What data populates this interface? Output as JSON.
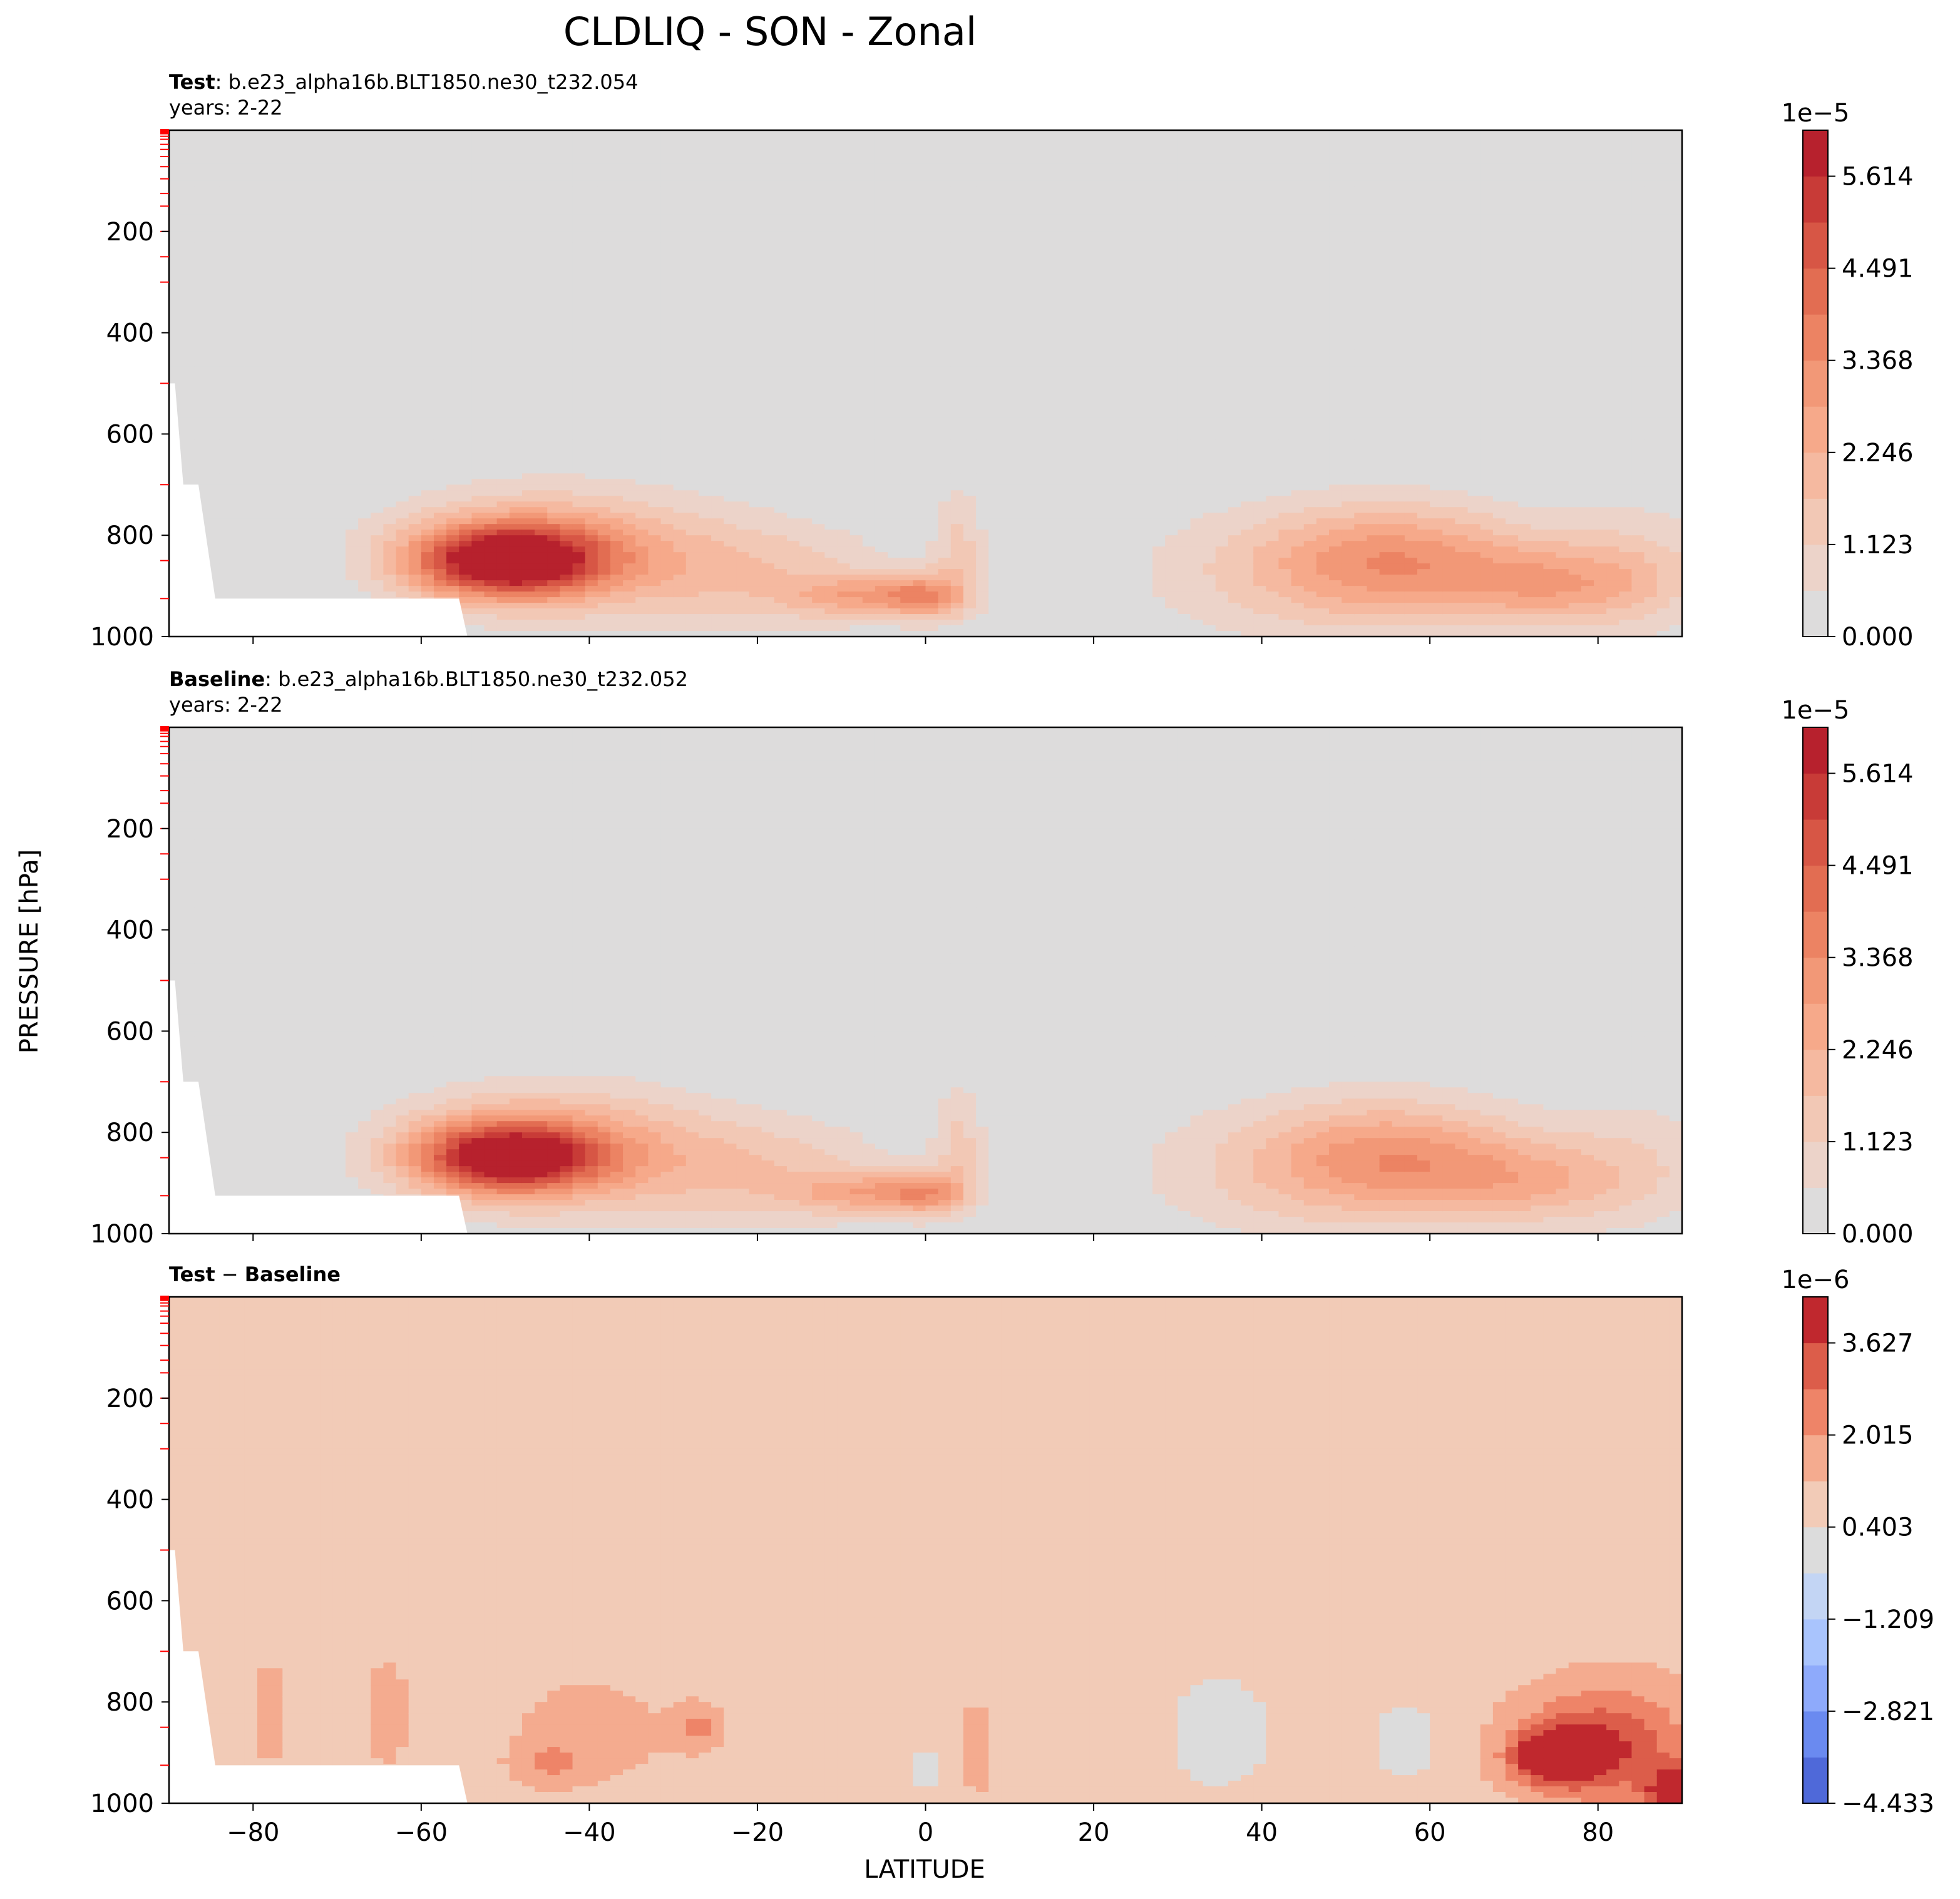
{
  "figure": {
    "title": "CLDLIQ - SON - Zonal",
    "xlabel": "LATITUDE",
    "ylabel": "PRESSURE [hPa]"
  },
  "chart_data": [
    {
      "type": "heatmap",
      "panel": "test",
      "label_bold": "Test",
      "label_text": ": b.e23_alpha16b.BLT1850.ne30_t232.054",
      "years": "years: 2-22",
      "xlim": [
        -90,
        90
      ],
      "ylim": [
        1000,
        0
      ],
      "x_ticks": [
        -80,
        -60,
        -40,
        -20,
        0,
        20,
        40,
        60,
        80
      ],
      "y_ticks": [
        200,
        400,
        600,
        800,
        1000
      ],
      "colorbar": {
        "exponent": "1e−5",
        "ticks": [
          "0.000",
          "1.123",
          "2.246",
          "3.368",
          "4.491",
          "5.614"
        ],
        "colors": [
          "#dddcdc",
          "#ecd3c9",
          "#f2c8b5",
          "#f5b9a0",
          "#f6a98a",
          "#f29877",
          "#ec8363",
          "#e26d52",
          "#d75645",
          "#c83b37",
          "#b7212d"
        ]
      },
      "blobs": [
        {
          "lat": -50,
          "p": 850,
          "amp": 5.8,
          "wlat": 11,
          "wp": 70
        },
        {
          "lat": -44,
          "p": 830,
          "amp": 2.5,
          "wlat": 18,
          "wp": 120
        },
        {
          "lat": -20,
          "p": 880,
          "amp": 1.4,
          "wlat": 16,
          "wp": 110
        },
        {
          "lat": 0,
          "p": 920,
          "amp": 2.6,
          "wlat": 5,
          "wp": 45
        },
        {
          "lat": -8,
          "p": 920,
          "amp": 2.0,
          "wlat": 8,
          "wp": 40
        },
        {
          "lat": 4,
          "p": 820,
          "amp": 1.2,
          "wlat": 3,
          "wp": 120
        },
        {
          "lat": 56,
          "p": 850,
          "amp": 2.6,
          "wlat": 16,
          "wp": 110
        },
        {
          "lat": 75,
          "p": 900,
          "amp": 2.0,
          "wlat": 12,
          "wp": 80
        },
        {
          "lat": 45,
          "p": 880,
          "amp": 1.0,
          "wlat": 22,
          "wp": 140
        },
        {
          "lat": 85,
          "p": 860,
          "amp": 1.0,
          "wlat": 10,
          "wp": 130
        }
      ]
    },
    {
      "type": "heatmap",
      "panel": "baseline",
      "label_bold": "Baseline",
      "label_text": ": b.e23_alpha16b.BLT1850.ne30_t232.052",
      "years": "years: 2-22",
      "xlim": [
        -90,
        90
      ],
      "ylim": [
        1000,
        0
      ],
      "x_ticks": [
        -80,
        -60,
        -40,
        -20,
        0,
        20,
        40,
        60,
        80
      ],
      "y_ticks": [
        200,
        400,
        600,
        800,
        1000
      ],
      "colorbar": {
        "exponent": "1e−5",
        "ticks": [
          "0.000",
          "1.123",
          "2.246",
          "3.368",
          "4.491",
          "5.614"
        ],
        "colors": [
          "#dddcdc",
          "#ecd3c9",
          "#f2c8b5",
          "#f5b9a0",
          "#f6a98a",
          "#f29877",
          "#ec8363",
          "#e26d52",
          "#d75645",
          "#c83b37",
          "#b7212d"
        ]
      },
      "blobs": [
        {
          "lat": -50,
          "p": 850,
          "amp": 5.3,
          "wlat": 11,
          "wp": 70
        },
        {
          "lat": -44,
          "p": 830,
          "amp": 2.4,
          "wlat": 18,
          "wp": 120
        },
        {
          "lat": -20,
          "p": 880,
          "amp": 1.4,
          "wlat": 16,
          "wp": 110
        },
        {
          "lat": 0,
          "p": 920,
          "amp": 2.5,
          "wlat": 5,
          "wp": 45
        },
        {
          "lat": -8,
          "p": 920,
          "amp": 1.9,
          "wlat": 8,
          "wp": 40
        },
        {
          "lat": 4,
          "p": 820,
          "amp": 1.2,
          "wlat": 3,
          "wp": 120
        },
        {
          "lat": 56,
          "p": 850,
          "amp": 2.5,
          "wlat": 16,
          "wp": 110
        },
        {
          "lat": 72,
          "p": 900,
          "amp": 1.5,
          "wlat": 12,
          "wp": 80
        },
        {
          "lat": 45,
          "p": 880,
          "amp": 1.0,
          "wlat": 22,
          "wp": 140
        },
        {
          "lat": 85,
          "p": 860,
          "amp": 0.9,
          "wlat": 10,
          "wp": 130
        }
      ]
    },
    {
      "type": "heatmap",
      "panel": "diff",
      "label_bold_a": "Test",
      "label_mid": " − ",
      "label_bold_b": "Baseline",
      "xlim": [
        -90,
        90
      ],
      "ylim": [
        1000,
        0
      ],
      "x_ticks": [
        -80,
        -60,
        -40,
        -20,
        0,
        20,
        40,
        60,
        80
      ],
      "y_ticks": [
        200,
        400,
        600,
        800,
        1000
      ],
      "colorbar": {
        "exponent": "1e−6",
        "ticks": [
          "−4.433",
          "−2.821",
          "−1.209",
          "0.403",
          "2.015",
          "3.627"
        ],
        "colors": [
          "#4f69d9",
          "#6a8af0",
          "#8eaafb",
          "#a9c4fd",
          "#c3d5f4",
          "#dcdcdc",
          "#f2cbb7",
          "#f4ab8f",
          "#ee8468",
          "#dc5d4a",
          "#c0282e"
        ]
      },
      "blobs": [
        {
          "lat": 75,
          "p": 910,
          "amp": 3.9,
          "wlat": 5,
          "wp": 50
        },
        {
          "lat": 78,
          "p": 880,
          "amp": 2.0,
          "wlat": 9,
          "wp": 110
        },
        {
          "lat": 89,
          "p": 990,
          "amp": 3.6,
          "wlat": 3,
          "wp": 60
        },
        {
          "lat": 85,
          "p": 900,
          "amp": 1.3,
          "wlat": 8,
          "wp": 140
        },
        {
          "lat": -27,
          "p": 850,
          "amp": 1.4,
          "wlat": 3,
          "wp": 45
        },
        {
          "lat": -45,
          "p": 920,
          "amp": 1.1,
          "wlat": 4,
          "wp": 40
        },
        {
          "lat": -40,
          "p": 860,
          "amp": 0.75,
          "wlat": 10,
          "wp": 120
        },
        {
          "lat": -64,
          "p": 820,
          "amp": 0.75,
          "wlat": 3,
          "wp": 130
        },
        {
          "lat": -78,
          "p": 820,
          "amp": 0.7,
          "wlat": 3,
          "wp": 130
        },
        {
          "lat": 6,
          "p": 890,
          "amp": 0.7,
          "wlat": 3,
          "wp": 120
        },
        {
          "lat": 35,
          "p": 860,
          "amp": -1.0,
          "wlat": 6,
          "wp": 110
        },
        {
          "lat": 57,
          "p": 880,
          "amp": -0.9,
          "wlat": 4,
          "wp": 80
        },
        {
          "lat": 0,
          "p": 930,
          "amp": -0.7,
          "wlat": 3,
          "wp": 50
        }
      ]
    }
  ]
}
